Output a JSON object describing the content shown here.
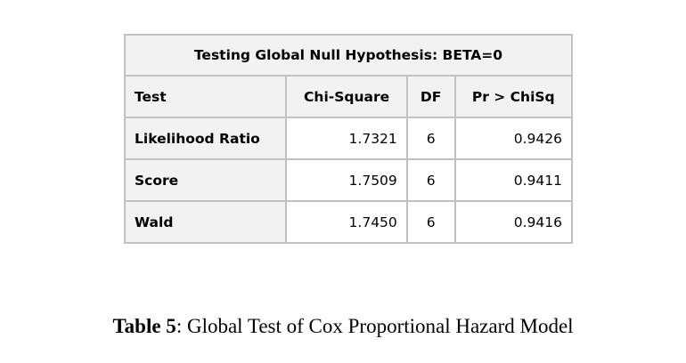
{
  "table": {
    "title": "Testing Global Null Hypothesis: BETA=0",
    "headers": [
      "Test",
      "Chi-Square",
      "DF",
      "Pr > ChiSq"
    ],
    "rows": [
      {
        "test": "Likelihood Ratio",
        "chi_square": "1.7321",
        "df": "6",
        "p": "0.9426"
      },
      {
        "test": "Score",
        "chi_square": "1.7509",
        "df": "6",
        "p": "0.9411"
      },
      {
        "test": "Wald",
        "chi_square": "1.7450",
        "df": "6",
        "p": "0.9416"
      }
    ]
  },
  "caption": {
    "label": "Table 5",
    "text": ": Global Test of Cox Proportional Hazard Model"
  }
}
